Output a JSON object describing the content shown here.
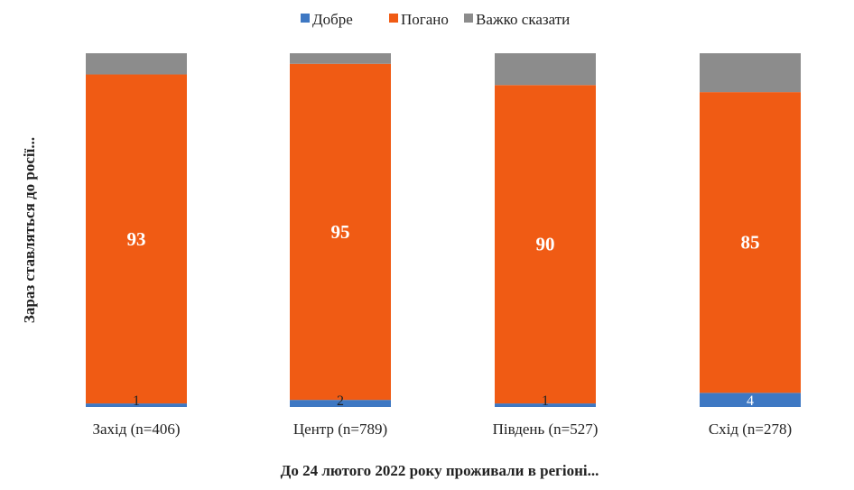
{
  "chart_data": {
    "type": "bar",
    "stacked": true,
    "categories": [
      "Захід (n=406)",
      "Центр (n=789)",
      "Південь (n=527)",
      "Схід (n=278)"
    ],
    "series": [
      {
        "name": "Добре",
        "values": [
          1,
          2,
          1,
          4
        ],
        "color": "#3e78c3",
        "labels": [
          "1",
          "2",
          "1",
          "4"
        ]
      },
      {
        "name": "Погано",
        "values": [
          93,
          95,
          90,
          85
        ],
        "color": "#f05b14",
        "labels": [
          "93",
          "95",
          "90",
          "85"
        ]
      },
      {
        "name": "Важко сказати",
        "values": [
          6,
          3,
          9,
          11
        ],
        "color": "#8c8c8c",
        "labels": [
          "",
          "",
          "",
          ""
        ]
      }
    ],
    "xlabel": "До 24 лютого 2022 року проживали в регіоні...",
    "ylabel": "Зараз ставляться до росії...",
    "ylim": [
      0,
      100
    ],
    "grid": false,
    "legend_position": "top"
  }
}
